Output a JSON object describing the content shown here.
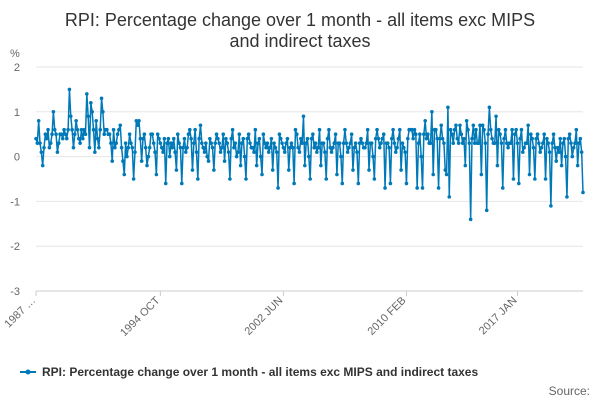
{
  "chart_data": {
    "type": "line",
    "title_lines": [
      "RPI: Percentage change over 1 month - all items exc MIPS",
      "and indirect taxes"
    ],
    "ylabel": "%",
    "ylim": [
      -3,
      2
    ],
    "y_ticks": [
      "2",
      "1",
      "0",
      "-1",
      "-2",
      "-3"
    ],
    "x_tick_labels": [
      "1987 …",
      "1994 OCT",
      "2002 JUN",
      "2010 FEB",
      "2017 JAN"
    ],
    "x_start": "1987 JAN",
    "x_end": "2017 JAN",
    "grid": "horizontal",
    "legend_position": "bottom",
    "source_label": "Source:",
    "color": "#0079b8",
    "series": [
      {
        "name": "RPI: Percentage change over 1 month - all items exc MIPS and indirect taxes",
        "values": [
          0.4,
          0.3,
          0.8,
          0.3,
          0.1,
          -0.2,
          0.2,
          0.5,
          0.4,
          0.6,
          0.2,
          0.3,
          0.5,
          1.0,
          0.6,
          0.5,
          0.1,
          0.3,
          0.5,
          0.5,
          0.4,
          0.6,
          0.5,
          0.4,
          0.6,
          1.5,
          0.9,
          0.6,
          0.2,
          0.5,
          0.8,
          0.6,
          0.4,
          0.3,
          0.6,
          0.4,
          0.6,
          0.5,
          1.4,
          0.9,
          0.2,
          1.2,
          1.0,
          0.6,
          0.1,
          0.8,
          0.4,
          0.2,
          0.6,
          1.3,
          1.0,
          0.5,
          0.6,
          0.6,
          0.5,
          0.5,
          0.3,
          -0.1,
          0.6,
          0.2,
          0.3,
          0.5,
          0.6,
          0.7,
          0.2,
          -0.1,
          -0.4,
          0.3,
          0.0,
          0.2,
          0.5,
          0.3,
          0.2,
          -0.5,
          0.1,
          0.8,
          0.7,
          0.8,
          0.4,
          -0.1,
          0.4,
          0.5,
          0.2,
          -0.2,
          0.0,
          0.2,
          0.5,
          0.5,
          0.3,
          0.1,
          -0.4,
          0.5,
          0.4,
          0.3,
          0.2,
          0.1,
          0.4,
          -0.6,
          0.3,
          0.4,
          0.0,
          0.3,
          0.2,
          0.4,
          0.1,
          -0.3,
          0.5,
          0.3,
          0.2,
          -0.6,
          0.2,
          0.4,
          0.1,
          0.2,
          0.5,
          0.6,
          0.4,
          -0.3,
          0.3,
          0.6,
          0.1,
          -0.5,
          0.4,
          0.7,
          0.3,
          0.2,
          0.1,
          0.3,
          0.0,
          -0.1,
          0.4,
          0.3,
          0.2,
          -0.3,
          0.3,
          0.5,
          0.4,
          0.3,
          0.1,
          0.2,
          0.5,
          -0.1,
          0.4,
          0.3,
          0.1,
          -0.5,
          0.4,
          0.6,
          0.2,
          0.3,
          0.0,
          0.1,
          0.5,
          -0.2,
          0.3,
          0.4,
          0.0,
          -0.5,
          0.4,
          0.5,
          0.3,
          0.2,
          0.2,
          0.1,
          0.6,
          -0.2,
          0.3,
          0.4,
          0.0,
          -0.4,
          0.5,
          0.3,
          0.2,
          0.3,
          0.1,
          0.2,
          0.4,
          -0.3,
          0.3,
          0.2,
          0.1,
          -0.7,
          0.5,
          0.4,
          0.3,
          0.2,
          0.1,
          0.3,
          0.4,
          -0.3,
          0.2,
          0.3,
          0.2,
          -0.6,
          0.6,
          0.5,
          0.2,
          0.1,
          0.4,
          0.3,
          0.9,
          -0.2,
          0.3,
          0.4,
          0.0,
          -0.5,
          0.4,
          0.5,
          0.2,
          0.3,
          0.1,
          0.2,
          0.6,
          -0.2,
          0.3,
          0.3,
          0.1,
          -0.5,
          0.4,
          0.6,
          0.2,
          0.1,
          0.2,
          0.3,
          0.5,
          -0.4,
          0.3,
          0.3,
          0.0,
          -0.6,
          0.3,
          0.6,
          0.3,
          0.1,
          0.2,
          0.3,
          0.5,
          -0.3,
          0.2,
          0.3,
          0.1,
          -0.6,
          0.3,
          0.4,
          0.3,
          0.2,
          0.2,
          0.3,
          0.6,
          -0.3,
          0.3,
          0.3,
          0.0,
          -0.5,
          0.4,
          0.6,
          0.4,
          0.2,
          0.3,
          0.4,
          0.5,
          -0.7,
          0.3,
          0.3,
          0.2,
          -0.6,
          0.4,
          0.6,
          0.3,
          0.1,
          0.2,
          0.4,
          0.6,
          -0.3,
          0.3,
          0.2,
          0.1,
          -0.6,
          0.4,
          0.6,
          0.6,
          0.6,
          0.4,
          0.6,
          0.5,
          -0.7,
          0.3,
          0.5,
          0.0,
          -0.7,
          0.5,
          0.8,
          0.4,
          0.5,
          0.3,
          0.3,
          1.0,
          -0.4,
          0.6,
          0.6,
          0.4,
          -0.7,
          0.4,
          0.7,
          0.4,
          0.3,
          -0.3,
          -0.4,
          1.1,
          -0.9,
          0.6,
          0.5,
          0.3,
          0.6,
          0.7,
          0.4,
          0.3,
          0.7,
          0.5,
          0.3,
          0.4,
          -0.2,
          0.8,
          0.6,
          0.3,
          -1.4,
          0.4,
          0.7,
          0.3,
          0.6,
          0.3,
          0.3,
          0.7,
          -0.4,
          0.7,
          0.6,
          0.3,
          -1.2,
          0.5,
          1.1,
          0.6,
          0.4,
          0.3,
          0.3,
          0.9,
          -0.2,
          0.6,
          0.5,
          0.3,
          -0.7,
          0.4,
          0.6,
          0.3,
          0.2,
          0.3,
          0.3,
          0.6,
          -0.5,
          0.5,
          0.6,
          0.3,
          -0.6,
          0.4,
          0.6,
          0.1,
          0.2,
          0.3,
          0.3,
          0.7,
          -0.4,
          0.5,
          0.4,
          0.2,
          -0.5,
          0.4,
          0.5,
          0.3,
          0.1,
          0.2,
          0.3,
          0.5,
          -0.5,
          0.4,
          0.3,
          0.1,
          -1.1,
          0.3,
          0.5,
          0.2,
          -0.1,
          0.2,
          0.1,
          0.4,
          -0.2,
          0.3,
          0.4,
          0.0,
          -0.9,
          0.4,
          0.5,
          0.3,
          0.0,
          0.2,
          0.3,
          0.6,
          -0.2,
          0.3,
          0.4,
          0.1,
          -0.8
        ]
      }
    ]
  }
}
